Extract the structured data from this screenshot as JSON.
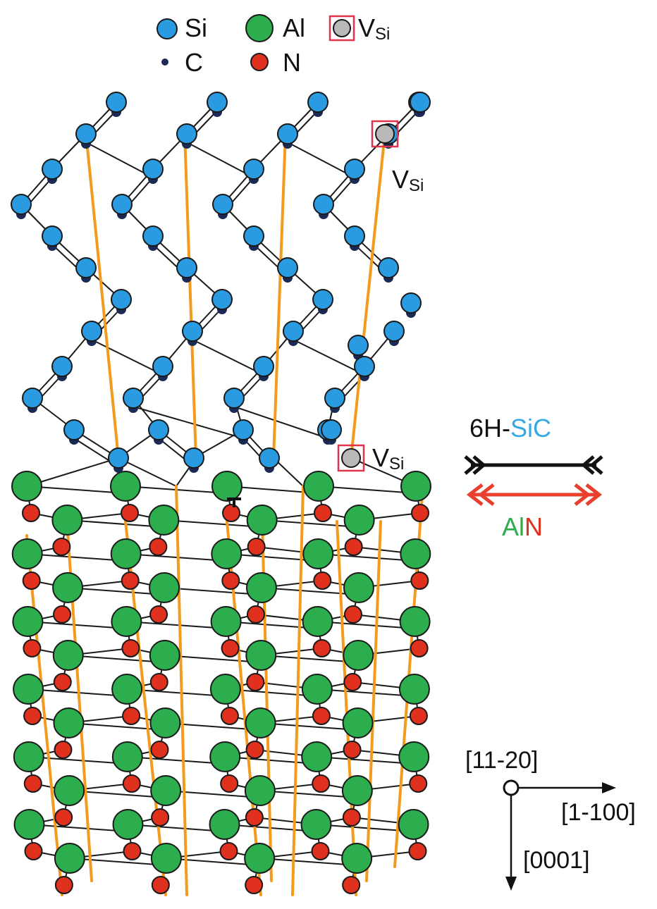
{
  "legend": {
    "si": "Si",
    "c": "C",
    "al": "Al",
    "n": "N",
    "vacancy": "V",
    "vacancy_sub": "Si"
  },
  "vacancy_labels": [
    {
      "main": "V",
      "sub": "Si"
    },
    {
      "main": "V",
      "sub": "Si"
    }
  ],
  "lattice_mismatch": {
    "top_part1": "6H-",
    "top_part2": "SiC",
    "bottom_part1": "Al",
    "bottom_part2": "N"
  },
  "dislocation_symbol": "T",
  "axes": {
    "view": "[11-20]",
    "horizontal": "[1-100]",
    "vertical": "[0001]"
  },
  "colors": {
    "si": "#2a9be0",
    "c": "#1b2a55",
    "al": "#2cae4e",
    "n": "#e0301e",
    "vacancy": "#b9b9b9",
    "vacancy_box": "#e0344a",
    "bond": "#1a1a1a",
    "column_line": "#f39a1f",
    "mismatch_black": "#111111",
    "mismatch_red": "#e8402c",
    "sic_light": "#35a9e4",
    "sic_dark": "#1f3e8c"
  }
}
